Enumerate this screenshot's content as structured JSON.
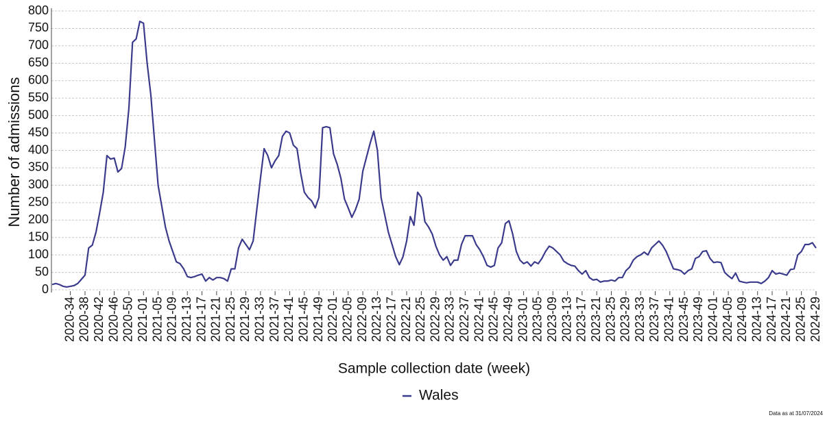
{
  "chart_data": {
    "type": "line",
    "x_label": "Sample collection date (week)",
    "y_label": "Number of admissions",
    "footnote": "Data as at 31/07/2024",
    "categories": [
      null,
      null,
      null,
      null,
      null,
      "2020-34",
      null,
      null,
      null,
      "2020-38",
      null,
      null,
      null,
      "2020-42",
      null,
      null,
      null,
      "2020-46",
      null,
      null,
      null,
      "2020-50",
      null,
      null,
      null,
      "2021-01",
      null,
      null,
      null,
      "2021-05",
      null,
      null,
      null,
      "2021-09",
      null,
      null,
      null,
      "2021-13",
      null,
      null,
      null,
      "2021-17",
      null,
      null,
      null,
      "2021-21",
      null,
      null,
      null,
      "2021-25",
      null,
      null,
      null,
      "2021-29",
      null,
      null,
      null,
      "2021-33",
      null,
      null,
      null,
      "2021-37",
      null,
      null,
      null,
      "2021-41",
      null,
      null,
      null,
      "2021-45",
      null,
      null,
      null,
      "2021-49",
      null,
      null,
      null,
      "2022-01",
      null,
      null,
      null,
      "2022-05",
      null,
      null,
      null,
      "2022-09",
      null,
      null,
      null,
      "2022-13",
      null,
      null,
      null,
      "2022-17",
      null,
      null,
      null,
      "2022-21",
      null,
      null,
      null,
      "2022-25",
      null,
      null,
      null,
      "2022-29",
      null,
      null,
      null,
      "2022-33",
      null,
      null,
      null,
      "2022-37",
      null,
      null,
      null,
      "2022-41",
      null,
      null,
      null,
      "2022-45",
      null,
      null,
      null,
      "2022-49",
      null,
      null,
      null,
      "2023-01",
      null,
      null,
      null,
      "2023-05",
      null,
      null,
      null,
      "2023-09",
      null,
      null,
      null,
      "2023-13",
      null,
      null,
      null,
      "2023-17",
      null,
      null,
      null,
      "2023-21",
      null,
      null,
      null,
      "2023-25",
      null,
      null,
      null,
      "2023-29",
      null,
      null,
      null,
      "2023-33",
      null,
      null,
      null,
      "2023-37",
      null,
      null,
      null,
      "2023-41",
      null,
      null,
      null,
      "2023-45",
      null,
      null,
      null,
      "2023-49",
      null,
      null,
      null,
      "2024-01",
      null,
      null,
      null,
      "2024-05",
      null,
      null,
      null,
      "2024-09",
      null,
      null,
      null,
      "2024-13",
      null,
      null,
      null,
      "2024-17",
      null,
      null,
      null,
      "2024-21",
      null,
      null,
      null,
      "2024-25",
      null,
      null,
      null,
      "2024-29"
    ],
    "series": [
      {
        "name": "Wales",
        "color": "#3a3a8c",
        "values": [
          15,
          18,
          15,
          10,
          8,
          10,
          12,
          18,
          30,
          42,
          120,
          128,
          165,
          220,
          280,
          385,
          375,
          378,
          338,
          348,
          410,
          520,
          710,
          720,
          770,
          765,
          650,
          560,
          430,
          300,
          240,
          180,
          140,
          110,
          80,
          75,
          60,
          38,
          35,
          38,
          42,
          45,
          25,
          35,
          28,
          35,
          35,
          32,
          25,
          60,
          60,
          120,
          145,
          130,
          115,
          140,
          230,
          320,
          405,
          385,
          350,
          370,
          385,
          440,
          455,
          450,
          415,
          405,
          335,
          280,
          265,
          255,
          235,
          265,
          465,
          468,
          465,
          390,
          360,
          320,
          260,
          235,
          208,
          230,
          260,
          340,
          380,
          420,
          455,
          400,
          265,
          215,
          165,
          130,
          95,
          72,
          95,
          140,
          210,
          185,
          280,
          265,
          195,
          180,
          160,
          125,
          100,
          85,
          95,
          70,
          85,
          85,
          130,
          155,
          155,
          155,
          130,
          115,
          95,
          70,
          65,
          70,
          120,
          135,
          190,
          198,
          160,
          110,
          85,
          75,
          80,
          68,
          80,
          75,
          90,
          110,
          125,
          120,
          110,
          100,
          82,
          75,
          70,
          68,
          55,
          45,
          55,
          35,
          28,
          30,
          22,
          25,
          25,
          28,
          25,
          35,
          35,
          55,
          65,
          85,
          95,
          100,
          108,
          100,
          120,
          130,
          140,
          128,
          110,
          85,
          60,
          58,
          55,
          45,
          55,
          60,
          90,
          95,
          110,
          112,
          90,
          78,
          80,
          78,
          50,
          40,
          32,
          48,
          25,
          22,
          20,
          22,
          22,
          22,
          18,
          25,
          35,
          55,
          45,
          48,
          45,
          42,
          58,
          60,
          100,
          110,
          130,
          130,
          135,
          120
        ]
      }
    ],
    "ylim": [
      0,
      800
    ],
    "yticks": [
      0,
      50,
      100,
      150,
      200,
      250,
      300,
      350,
      400,
      450,
      500,
      550,
      600,
      650,
      700,
      750,
      800
    ],
    "grid": true,
    "legend": "bottom"
  }
}
